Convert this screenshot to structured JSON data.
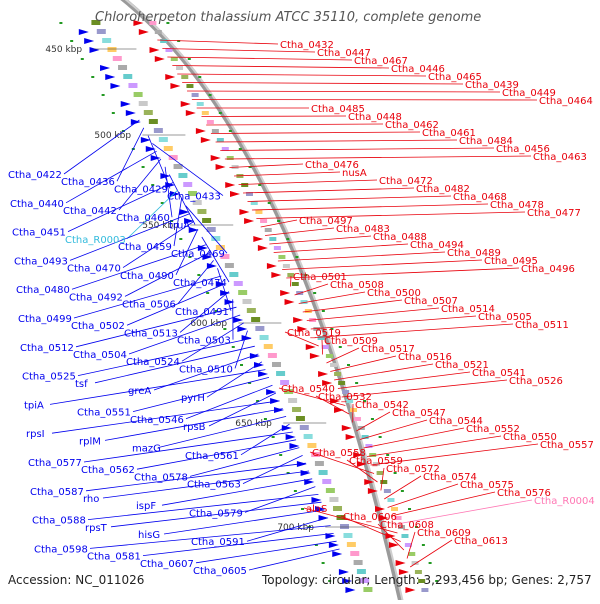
{
  "title": "Chloroherpeton thalassium ATCC 35110, complete genome",
  "footer": {
    "accession": "Accession: NC_011026",
    "summary": "Topology: circular; Length: 3,293,456 bp; Genes: 2,757"
  },
  "colors": {
    "forward": "#e8000b",
    "reverse": "#0000ee",
    "rna_forward": "#ff77b4",
    "rna_reverse": "#33bbdd",
    "backbone": "#999999"
  },
  "ticks": [
    "450 kbp",
    "500 kbp",
    "550 kbp",
    "600 kbp",
    "650 kbp",
    "700 kbp"
  ],
  "right_labels": [
    "Ctha_0432",
    "Ctha_0447",
    "Ctha_0467",
    "Ctha_0446",
    "Ctha_0465",
    "Ctha_0439",
    "Ctha_0449",
    "Ctha_0464",
    "Ctha_0485",
    "Ctha_0448",
    "Ctha_0462",
    "Ctha_0461",
    "Ctha_0484",
    "Ctha_0456",
    "Ctha_0463",
    "Ctha_0476",
    "nusA",
    "Ctha_0472",
    "Ctha_0482",
    "Ctha_0468",
    "Ctha_0478",
    "Ctha_0477",
    "Ctha_0497",
    "Ctha_0483",
    "Ctha_0488",
    "Ctha_0494",
    "Ctha_0489",
    "Ctha_0495",
    "Ctha_0496",
    "Ctha_0501",
    "Ctha_0508",
    "Ctha_0500",
    "Ctha_0507",
    "Ctha_0514",
    "Ctha_0505",
    "Ctha_0511",
    "Ctha_0519",
    "Ctha_0509",
    "Ctha_0517",
    "Ctha_0516",
    "Ctha_0521",
    "Ctha_0541",
    "Ctha_0526",
    "Ctha_0540",
    "Ctha_0532",
    "Ctha_0542",
    "Ctha_0547",
    "Ctha_0544",
    "Ctha_0552",
    "Ctha_0550",
    "Ctha_0557",
    "Ctha_0558",
    "Ctha_0559",
    "Ctha_0572",
    "Ctha_0574",
    "Ctha_0575",
    "Ctha_0576",
    "Ctha_R0004",
    "alaS",
    "Ctha_0606",
    "Ctha_0608",
    "Ctha_0609",
    "Ctha_0613"
  ],
  "left_labels": [
    "Ctha_0422",
    "Ctha_0436",
    "Ctha_0429",
    "Ctha_0433",
    "Ctha_0440",
    "Ctha_0442",
    "Ctha_0460",
    "truA",
    "Ctha_0451",
    "Ctha_R0003",
    "Ctha_0459",
    "Ctha_0469",
    "Ctha_0493",
    "Ctha_0470",
    "Ctha_0490",
    "Ctha_0474",
    "Ctha_0480",
    "Ctha_0492",
    "Ctha_0506",
    "Ctha_0491",
    "Ctha_0499",
    "Ctha_0502",
    "Ctha_0513",
    "Ctha_0503",
    "Ctha_0512",
    "Ctha_0504",
    "Ctha_0524",
    "Ctha_0510",
    "Ctha_0525",
    "tsf",
    "greA",
    "pyrH",
    "tpiA",
    "Ctha_0551",
    "Ctha_0546",
    "rpsB",
    "rpsI",
    "rplM",
    "mazG",
    "Ctha_0561",
    "Ctha_0577",
    "Ctha_0562",
    "Ctha_0578",
    "Ctha_0563",
    "Ctha_0587",
    "rho",
    "ispF",
    "Ctha_0579",
    "Ctha_0588",
    "rpsT",
    "hisG",
    "Ctha_0591",
    "Ctha_0598",
    "Ctha_0581",
    "Ctha_0607",
    "Ctha_0605"
  ]
}
